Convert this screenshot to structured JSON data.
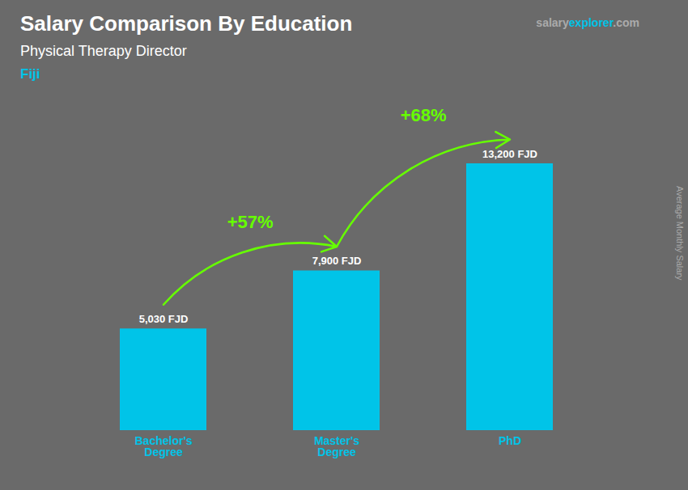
{
  "chart_data": {
    "type": "bar",
    "title": "Salary Comparison By Education",
    "subtitle": "Physical Therapy Director",
    "ylabel": "Average Monthly Salary",
    "categories": [
      "Bachelor's\nDegree",
      "Master's\nDegree",
      "PhD"
    ],
    "values": [
      5030,
      7900,
      13200
    ],
    "value_labels": [
      "5,030 FJD",
      "7,900 FJD",
      "13,200 FJD"
    ],
    "data_labels": true,
    "color": "#00C4E8",
    "ylim": [
      0,
      16000
    ],
    "tick_labels": "x",
    "grid": false,
    "annotations": [
      {
        "text": "Fiji",
        "color": "#00C4E8"
      },
      {
        "text": "salary",
        "color": "#AAAAAA"
      },
      {
        "text": "explorer",
        "color": "#00C4E8"
      },
      {
        "text": ".com",
        "color": "#AAAAAA"
      },
      {
        "text": "+57%",
        "from": "Bachelor's\nDegree",
        "to": "Master's\nDegree",
        "color": "#66FF00"
      },
      {
        "text": "+68%",
        "from": "Master's\nDegree",
        "to": "PhD",
        "color": "#66FF00"
      }
    ]
  }
}
